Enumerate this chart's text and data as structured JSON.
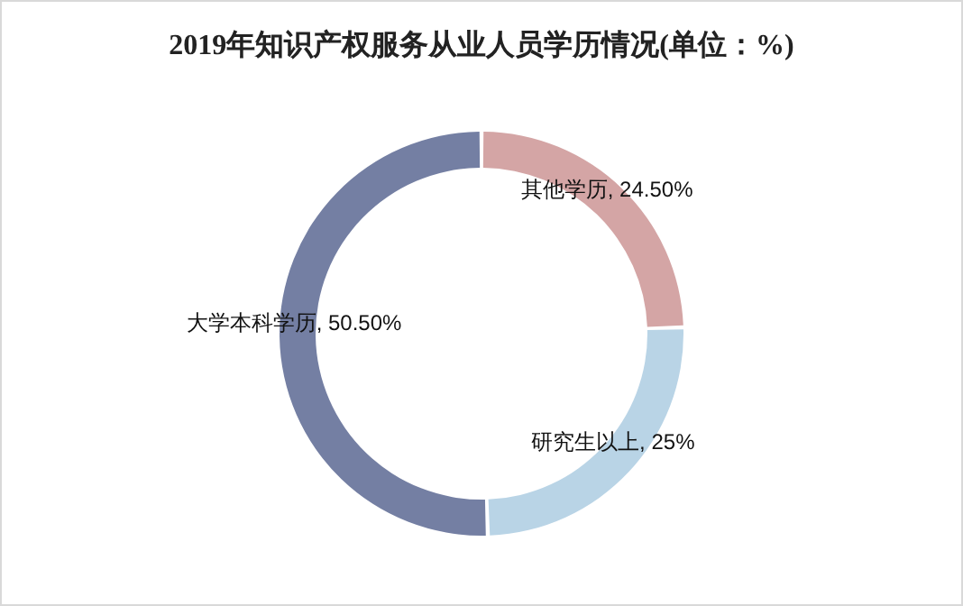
{
  "chart_data": {
    "type": "donut",
    "title": "2019年知识产权服务从业人员学历情况(单位：%)",
    "categories": [
      "其他学历",
      "研究生以上",
      "大学本科学历"
    ],
    "values": [
      24.5,
      25,
      50.5
    ],
    "colors": [
      "#d4a5a5",
      "#b9d4e6",
      "#747fa3"
    ],
    "value_labels": [
      "24.50%",
      "25%",
      "50.50%"
    ]
  }
}
